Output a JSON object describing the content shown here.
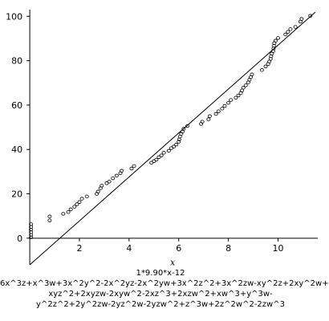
{
  "chart_data": {
    "type": "scatter",
    "xlabel": "x",
    "ylabel": "",
    "xlim": [
      -0.1,
      11.6
    ],
    "ylim": [
      -12,
      103
    ],
    "x_ticks": [
      2,
      4,
      6,
      8,
      10
    ],
    "y_ticks": [
      0,
      20,
      40,
      60,
      80,
      100
    ],
    "grid": false,
    "series": [
      {
        "kind": "points",
        "marker": "open-circle",
        "color": "#000000",
        "points": [
          [
            0.05,
            0.4
          ],
          [
            0.05,
            1.5
          ],
          [
            0.05,
            2.7
          ],
          [
            0.05,
            3.9
          ],
          [
            0.05,
            5.1
          ],
          [
            0.05,
            6.3
          ],
          [
            0.8,
            8.0
          ],
          [
            0.8,
            9.8
          ],
          [
            1.35,
            11.0
          ],
          [
            1.55,
            11.8
          ],
          [
            1.65,
            13.0
          ],
          [
            1.8,
            14.2
          ],
          [
            1.9,
            15.3
          ],
          [
            2.0,
            16.3
          ],
          [
            2.1,
            17.8
          ],
          [
            2.3,
            18.8
          ],
          [
            2.7,
            20.0
          ],
          [
            2.75,
            21.0
          ],
          [
            2.85,
            22.5
          ],
          [
            2.9,
            23.7
          ],
          [
            3.1,
            24.8
          ],
          [
            3.2,
            25.5
          ],
          [
            3.35,
            27.0
          ],
          [
            3.5,
            28.2
          ],
          [
            3.65,
            29.3
          ],
          [
            3.7,
            30.4
          ],
          [
            4.1,
            31.4
          ],
          [
            4.2,
            32.5
          ],
          [
            4.9,
            34.0
          ],
          [
            5.0,
            34.7
          ],
          [
            5.1,
            35.4
          ],
          [
            5.2,
            36.5
          ],
          [
            5.3,
            37.3
          ],
          [
            5.4,
            38.5
          ],
          [
            5.6,
            39.4
          ],
          [
            5.7,
            40.6
          ],
          [
            5.8,
            41.3
          ],
          [
            5.9,
            42.2
          ],
          [
            6.0,
            43.5
          ],
          [
            6.02,
            44.5
          ],
          [
            6.05,
            45.8
          ],
          [
            6.1,
            47.0
          ],
          [
            6.15,
            48.0
          ],
          [
            6.2,
            49.3
          ],
          [
            6.35,
            50.6
          ],
          [
            6.9,
            51.5
          ],
          [
            6.95,
            52.5
          ],
          [
            7.2,
            53.6
          ],
          [
            7.25,
            55.0
          ],
          [
            7.5,
            56.0
          ],
          [
            7.6,
            57.2
          ],
          [
            7.75,
            58.4
          ],
          [
            7.85,
            59.6
          ],
          [
            8.0,
            61.0
          ],
          [
            8.1,
            62.3
          ],
          [
            8.3,
            63.3
          ],
          [
            8.4,
            64.3
          ],
          [
            8.5,
            65.4
          ],
          [
            8.55,
            66.6
          ],
          [
            8.6,
            67.8
          ],
          [
            8.7,
            68.9
          ],
          [
            8.8,
            70.2
          ],
          [
            8.85,
            71.4
          ],
          [
            8.9,
            72.6
          ],
          [
            8.95,
            73.8
          ],
          [
            9.35,
            75.8
          ],
          [
            9.5,
            77.4
          ],
          [
            9.6,
            78.5
          ],
          [
            9.65,
            79.6
          ],
          [
            9.7,
            80.8
          ],
          [
            9.72,
            82.0
          ],
          [
            9.75,
            83.2
          ],
          [
            9.8,
            84.3
          ],
          [
            9.82,
            85.5
          ],
          [
            9.83,
            86.7
          ],
          [
            9.85,
            87.9
          ],
          [
            9.9,
            89.0
          ],
          [
            10.0,
            90.2
          ],
          [
            10.3,
            91.8
          ],
          [
            10.4,
            93.0
          ],
          [
            10.5,
            94.2
          ],
          [
            10.7,
            95.2
          ],
          [
            10.9,
            97.6
          ],
          [
            10.95,
            98.8
          ],
          [
            11.3,
            100.2
          ]
        ]
      },
      {
        "kind": "line",
        "label": "1*9.90*x-12",
        "color": "#000000",
        "slope": 9.9,
        "intercept": -12,
        "x_range": [
          0,
          11.5
        ]
      }
    ]
  },
  "caption_lines": [
    "1*9.90*x-12",
    "6x^3z+x^3w+3x^2y^2-2x^2yz-2x^2yw+3x^2z^2+3x^2zw-xy^2z+2xy^2w+",
    "xyz^2+2xyzw-2xyw^2-2xz^3+2xzw^2+xw^3+y^3w-",
    "y^2z^2+2y^2zw-2yz^2w-2yzw^2+z^3w+2z^2w^2-2zw^3"
  ]
}
